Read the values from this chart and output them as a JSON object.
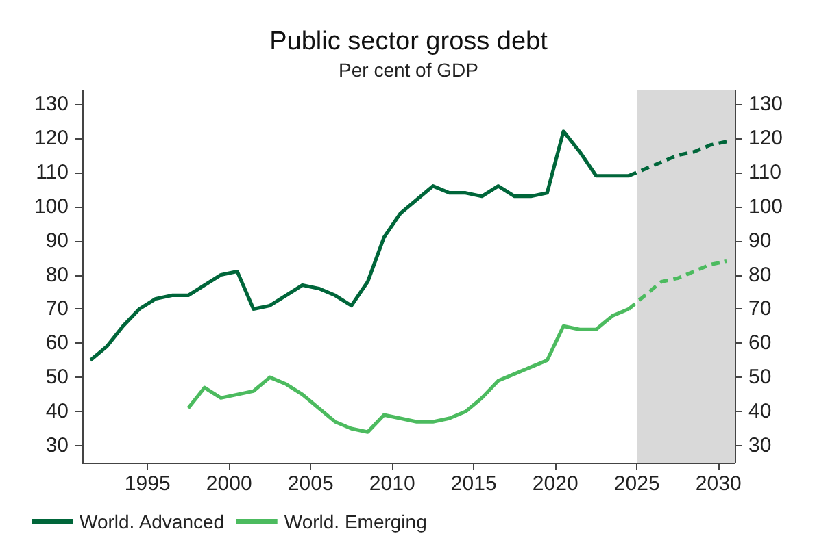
{
  "chart_data": {
    "type": "line",
    "title": "Public sector gross debt",
    "subtitle": "Per cent of GDP",
    "xlim": [
      1991,
      2031
    ],
    "xticks": [
      1995,
      2000,
      2005,
      2010,
      2015,
      2020,
      2025,
      2030
    ],
    "ylim": [
      25,
      134
    ],
    "yticks": [
      30,
      40,
      50,
      60,
      70,
      80,
      90,
      100,
      110,
      120,
      130
    ],
    "y2lim": [
      25,
      134
    ],
    "y2ticks": [
      30,
      40,
      50,
      60,
      70,
      80,
      90,
      100,
      110,
      120,
      130
    ],
    "grid": false,
    "legend": "bottom left",
    "marker": "none",
    "line_style": "solid",
    "bands": [
      {
        "axis": "x",
        "from": 2025,
        "to": 2031,
        "color": "#d9d9d9"
      }
    ],
    "series": [
      {
        "name": "World. Advanced",
        "color": "#00663a",
        "x": [
          1991.5,
          1992.5,
          1993.5,
          1994.5,
          1995.5,
          1996.5,
          1997.5,
          1998.5,
          1999.5,
          2000.5,
          2001.5,
          2002.5,
          2003.5,
          2004.5,
          2005.5,
          2006.5,
          2007.5,
          2008.5,
          2009.5,
          2010.5,
          2011.5,
          2012.5,
          2013.5,
          2014.5,
          2015.5,
          2016.5,
          2017.5,
          2018.5,
          2019.5,
          2020.5,
          2021.5,
          2022.5,
          2023.5,
          2024.5
        ],
        "values": [
          55,
          59,
          65,
          70,
          73,
          74,
          74,
          77,
          80,
          81,
          70,
          71,
          74,
          77,
          76,
          74,
          71,
          78,
          91,
          98,
          102,
          106,
          104,
          104,
          103,
          106,
          103,
          103,
          104,
          122,
          116,
          109,
          109,
          109
        ]
      },
      {
        "name": "World. Emerging",
        "color": "#4cbb5f",
        "x": [
          1997.5,
          1998.5,
          1999.5,
          2000.5,
          2001.5,
          2002.5,
          2003.5,
          2004.5,
          2005.5,
          2006.5,
          2007.5,
          2008.5,
          2009.5,
          2010.5,
          2011.5,
          2012.5,
          2013.5,
          2014.5,
          2015.5,
          2016.5,
          2017.5,
          2018.5,
          2019.5,
          2020.5,
          2021.5,
          2022.5,
          2023.5,
          2024.5
        ],
        "values": [
          41,
          47,
          44,
          45,
          46,
          50,
          48,
          45,
          41,
          37,
          35,
          34,
          39,
          38,
          37,
          37,
          38,
          40,
          44,
          49,
          51,
          53,
          55,
          65,
          64,
          64,
          68,
          70
        ]
      },
      {
        "color": "#00663a",
        "line_style": "dashed",
        "x": [
          2024.5,
          2025.5,
          2026.5,
          2027.5,
          2028.5,
          2029.5,
          2030.5
        ],
        "values": [
          109,
          111,
          113,
          115,
          116,
          118,
          119
        ]
      },
      {
        "color": "#4cbb5f",
        "line_style": "dashed",
        "x": [
          2024.5,
          2025.5,
          2026.5,
          2027.5,
          2028.5,
          2029.5,
          2030.5
        ],
        "values": [
          70,
          74,
          78,
          79,
          81,
          83,
          84
        ]
      }
    ]
  }
}
